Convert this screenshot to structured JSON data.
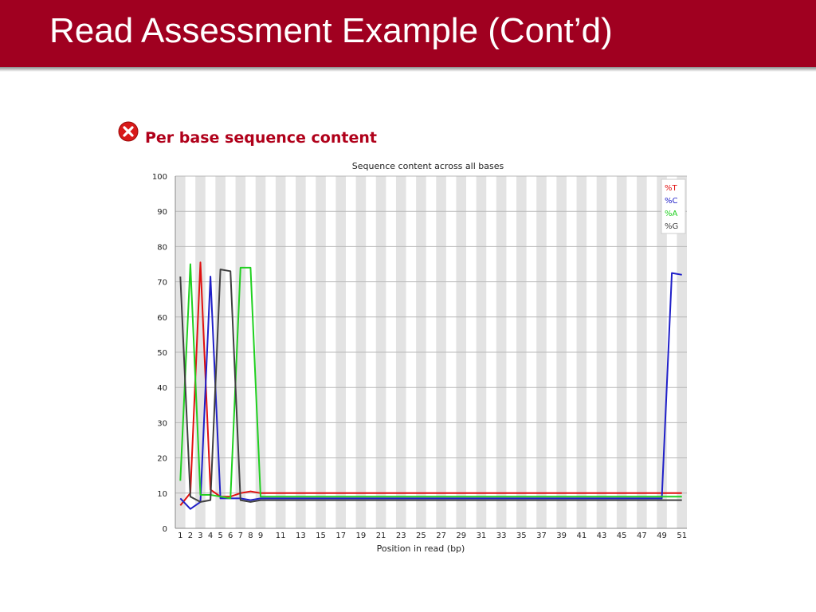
{
  "slide": {
    "title": "Read Assessment Example (Cont’d)"
  },
  "module": {
    "title": "Per base sequence content",
    "status_icon": "error-icon"
  },
  "colors": {
    "header": "#a00020",
    "T": "#e01010",
    "C": "#2020c8",
    "A": "#20d020",
    "G": "#404040"
  },
  "chart_data": {
    "type": "line",
    "title": "Sequence content across all bases",
    "xlabel": "Position in read (bp)",
    "ylabel": "",
    "ylim": [
      0,
      100
    ],
    "yticks": [
      "0",
      "10",
      "20",
      "30",
      "40",
      "50",
      "60",
      "70",
      "80",
      "90",
      "100"
    ],
    "xticks": [
      "1",
      "2",
      "3",
      "4",
      "5",
      "6",
      "7",
      "8",
      "9",
      "11",
      "13",
      "15",
      "17",
      "19",
      "21",
      "23",
      "25",
      "27",
      "29",
      "31",
      "33",
      "35",
      "37",
      "39",
      "41",
      "43",
      "45",
      "47",
      "49",
      "51"
    ],
    "grid": true,
    "legend": "top-right",
    "series": [
      {
        "name": "%T",
        "color": "#e01010",
        "values": [
          6.5,
          10,
          75.5,
          11,
          9,
          9,
          10,
          10.5,
          10,
          10,
          10,
          10,
          10,
          10,
          10,
          10,
          10,
          10,
          10,
          10,
          10,
          10,
          10,
          10,
          10,
          10,
          10,
          10,
          10,
          10,
          10,
          10,
          10,
          10,
          10,
          10,
          10,
          10,
          10,
          10,
          10,
          10,
          10,
          10,
          10,
          10,
          10,
          10,
          10,
          10,
          10
        ]
      },
      {
        "name": "%C",
        "color": "#2020c8",
        "values": [
          8.5,
          5.5,
          7.5,
          71.5,
          8.5,
          8.5,
          8.5,
          8,
          8.5,
          8.5,
          8.5,
          8.5,
          8.5,
          8.5,
          8.5,
          8.5,
          8.5,
          8.5,
          8.5,
          8.5,
          8.5,
          8.5,
          8.5,
          8.5,
          8.5,
          8.5,
          8.5,
          8.5,
          8.5,
          8.5,
          8.5,
          8.5,
          8.5,
          8.5,
          8.5,
          8.5,
          8.5,
          8.5,
          8.5,
          8.5,
          8.5,
          8.5,
          8.5,
          8.5,
          8.5,
          8.5,
          8.5,
          8.5,
          8.5,
          72.5,
          72
        ]
      },
      {
        "name": "%A",
        "color": "#20d020",
        "values": [
          13.5,
          75,
          9.5,
          9.5,
          9,
          8.5,
          74,
          74,
          9,
          9,
          9,
          9,
          9,
          9,
          9,
          9,
          9,
          9,
          9,
          9,
          9,
          9,
          9,
          9,
          9,
          9,
          9,
          9,
          9,
          9,
          9,
          9,
          9,
          9,
          9,
          9,
          9,
          9,
          9,
          9,
          9,
          9,
          9,
          9,
          9,
          9,
          9,
          9,
          9,
          9,
          9
        ]
      },
      {
        "name": "%G",
        "color": "#404040",
        "values": [
          71.5,
          9,
          7.5,
          8,
          73.5,
          73,
          8,
          7.5,
          8,
          8,
          8,
          8,
          8,
          8,
          8,
          8,
          8,
          8,
          8,
          8,
          8,
          8,
          8,
          8,
          8,
          8,
          8,
          8,
          8,
          8,
          8,
          8,
          8,
          8,
          8,
          8,
          8,
          8,
          8,
          8,
          8,
          8,
          8,
          8,
          8,
          8,
          8,
          8,
          8,
          8,
          8
        ]
      }
    ]
  }
}
